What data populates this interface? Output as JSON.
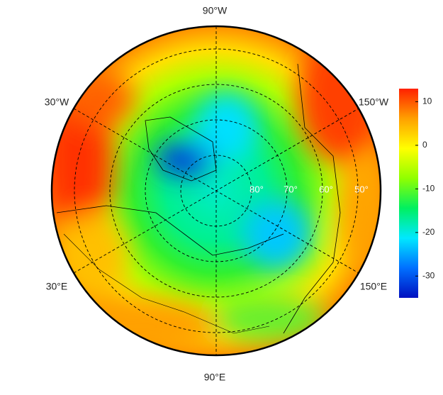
{
  "map": {
    "type": "polar-stereographic",
    "longitude_labels": [
      "90°W",
      "30°W",
      "150°W",
      "30°E",
      "150°E",
      "90°E"
    ],
    "latitude_labels": [
      "80°",
      "70°",
      "60°",
      "50°"
    ]
  },
  "colorbar": {
    "lim": [
      -35,
      13
    ],
    "ticks": [
      10,
      0,
      -10,
      -20,
      -30
    ],
    "colors": [
      "#0010c0",
      "#0070ff",
      "#00e8ff",
      "#00f060",
      "#90ff00",
      "#ffff00",
      "#ffa000",
      "#ff2000"
    ]
  }
}
